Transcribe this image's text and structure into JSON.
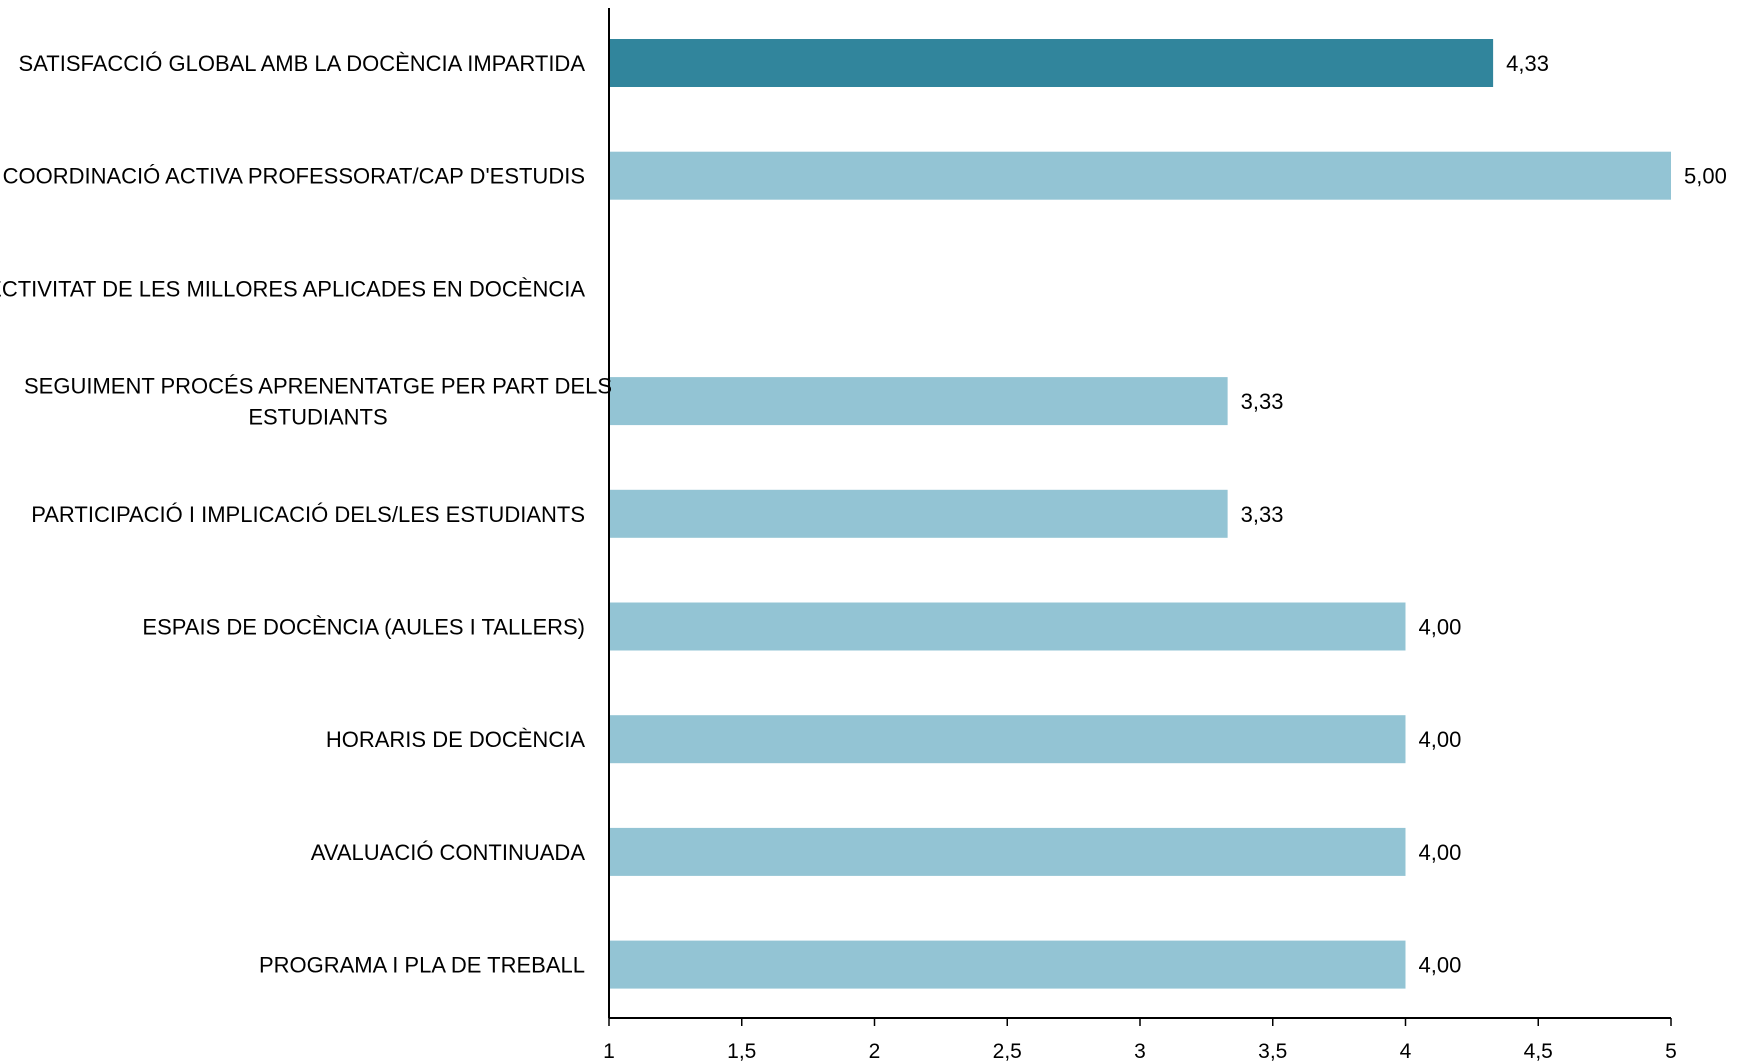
{
  "chart_data": {
    "type": "bar",
    "orientation": "horizontal",
    "categories": [
      "SATISFACCIÓ GLOBAL AMB LA DOCÈNCIA IMPARTIDA",
      "COORDINACIÓ ACTIVA PROFESSORAT/CAP D'ESTUDIS",
      "EFECTIVITAT DE LES MILLORES APLICADES EN DOCÈNCIA",
      "SEGUIMENT PROCÉS APRENENTATGE PER PART DELS ESTUDIANTS",
      "PARTICIPACIÓ I IMPLICACIÓ DELS/LES ESTUDIANTS",
      "ESPAIS DE DOCÈNCIA (AULES I TALLERS)",
      "HORARIS DE DOCÈNCIA",
      "AVALUACIÓ CONTINUADA",
      "PROGRAMA I PLA DE TREBALL"
    ],
    "category_lines": [
      [
        "SATISFACCIÓ GLOBAL AMB LA DOCÈNCIA IMPARTIDA"
      ],
      [
        "COORDINACIÓ ACTIVA PROFESSORAT/CAP D'ESTUDIS"
      ],
      [
        "EFECTIVITAT DE LES MILLORES APLICADES EN DOCÈNCIA"
      ],
      [
        "SEGUIMENT PROCÉS APRENENTATGE PER PART DELS",
        "ESTUDIANTS"
      ],
      [
        "PARTICIPACIÓ I IMPLICACIÓ DELS/LES ESTUDIANTS"
      ],
      [
        "ESPAIS DE DOCÈNCIA (AULES I TALLERS)"
      ],
      [
        "HORARIS DE DOCÈNCIA"
      ],
      [
        "AVALUACIÓ CONTINUADA"
      ],
      [
        "PROGRAMA I PLA DE TREBALL"
      ]
    ],
    "values": [
      4.33,
      5.0,
      null,
      3.33,
      3.33,
      4.0,
      4.0,
      4.0,
      4.0
    ],
    "value_labels": [
      "4,33",
      "5,00",
      "",
      "3,33",
      "3,33",
      "4,00",
      "4,00",
      "4,00",
      "4,00"
    ],
    "highlight_index": 0,
    "colors": {
      "highlight": "#31859c",
      "bar": "#93c4d4",
      "axis": "#000000"
    },
    "xlim": [
      1,
      5
    ],
    "xticks": [
      1,
      1.5,
      2,
      2.5,
      3,
      3.5,
      4,
      4.5,
      5
    ],
    "xtick_labels": [
      "1",
      "1,5",
      "2",
      "2,5",
      "3",
      "3,5",
      "4",
      "4,5",
      "5"
    ],
    "title": "",
    "xlabel": "",
    "ylabel": "",
    "grid": false,
    "legend": "none"
  }
}
